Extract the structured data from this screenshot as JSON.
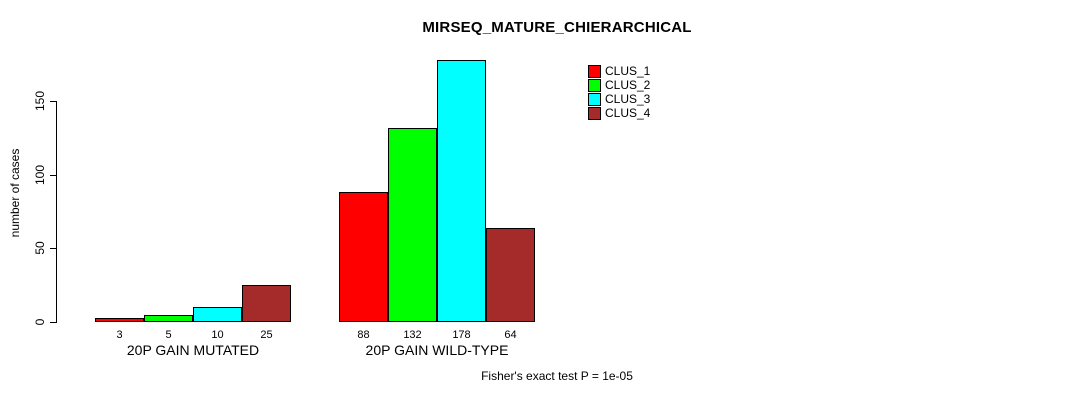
{
  "chart_data": {
    "type": "bar",
    "title": "MIRSEQ_MATURE_CHIERARCHICAL",
    "ylabel": "number of cases",
    "xlabel": "",
    "ylim": [
      0,
      178
    ],
    "yticks": [
      0,
      50,
      100,
      150
    ],
    "grid": false,
    "legend_position": "top-right",
    "categories": [
      "20P GAIN MUTATED",
      "20P GAIN WILD-TYPE"
    ],
    "series": [
      {
        "name": "CLUS_1",
        "color": "#FF0000",
        "values": [
          3,
          88
        ]
      },
      {
        "name": "CLUS_2",
        "color": "#00FF00",
        "values": [
          5,
          132
        ]
      },
      {
        "name": "CLUS_3",
        "color": "#00FFFF",
        "values": [
          10,
          178
        ]
      },
      {
        "name": "CLUS_4",
        "color": "#A52A2A",
        "values": [
          25,
          64
        ]
      }
    ],
    "bar_value_labels": [
      [
        3,
        5,
        10,
        25
      ],
      [
        88,
        132,
        178,
        64
      ]
    ],
    "annotation": "Fisher's exact test P = 1e-05"
  },
  "colors": {
    "bar_border": "#000000",
    "axis": "#000000",
    "background": "#FFFFFF"
  }
}
